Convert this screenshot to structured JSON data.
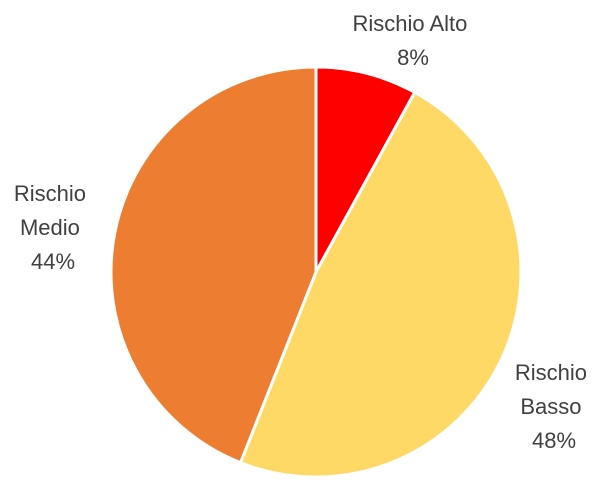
{
  "chart_data": {
    "type": "pie",
    "title": "",
    "start_angle_deg": 0,
    "direction": "clockwise",
    "slices": [
      {
        "category": "Rischio Alto",
        "label_lines": [
          "Rischio Alto",
          "8%"
        ],
        "value": 8,
        "color": "#FF0000"
      },
      {
        "category": "Rischio Basso",
        "label_lines": [
          "Rischio",
          "Basso",
          "48%"
        ],
        "value": 48,
        "color": "#FFD966"
      },
      {
        "category": "Rischio Medio",
        "label_lines": [
          "Rischio",
          "Medio",
          "44%"
        ],
        "value": 44,
        "color": "#ED7D31"
      }
    ],
    "slice_border_color": "#FFFFFF",
    "legend": "none"
  }
}
